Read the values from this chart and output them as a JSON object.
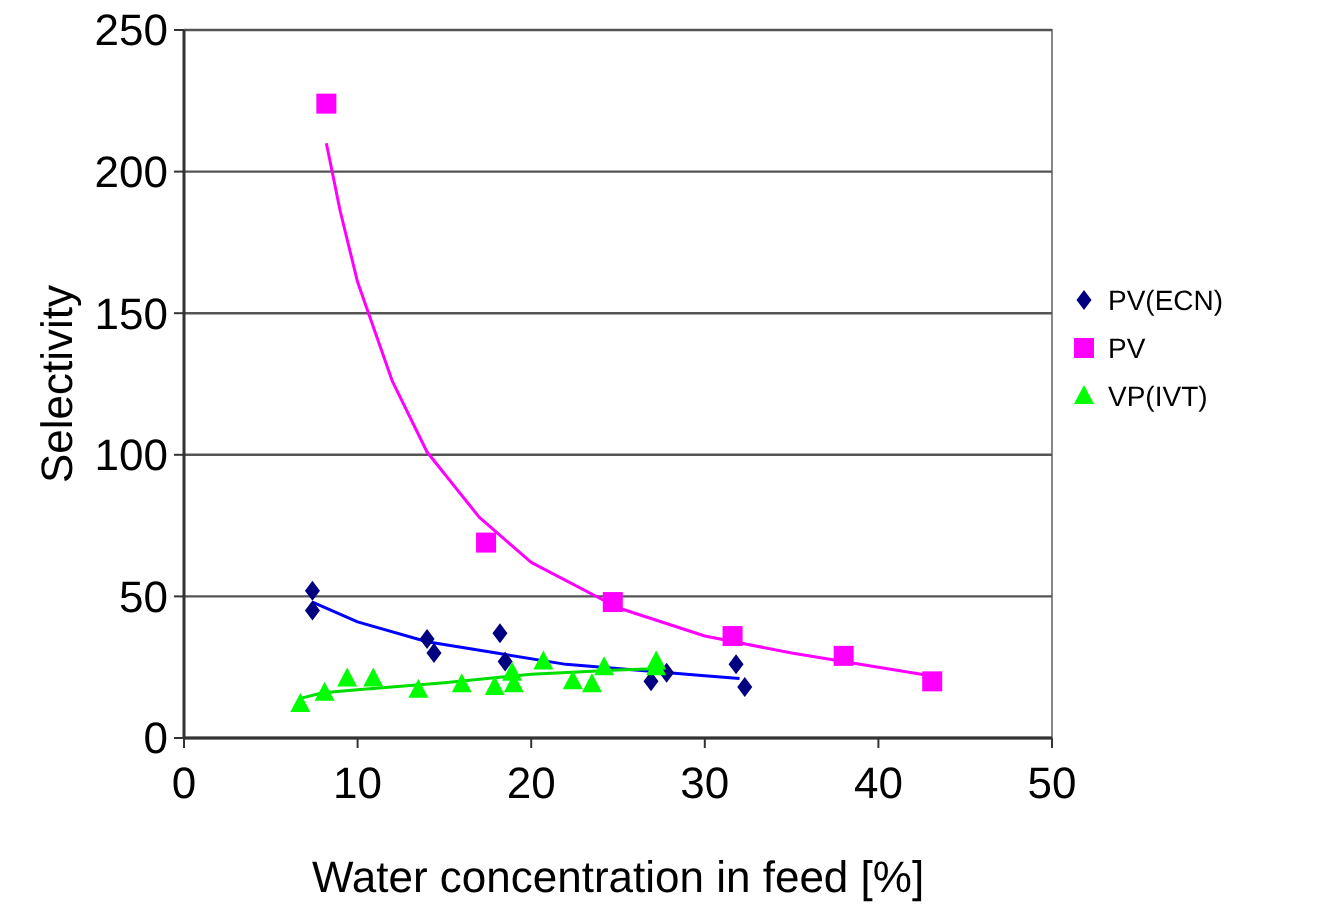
{
  "chart_data": {
    "type": "scatter",
    "xlabel": "Water concentration in feed [%]",
    "ylabel": "Selectivity",
    "xlim": [
      0,
      50
    ],
    "xticks": [
      0,
      10,
      20,
      30,
      40,
      50
    ],
    "ylim": [
      0,
      250
    ],
    "yticks": [
      0,
      50,
      100,
      150,
      200,
      250
    ],
    "grid": "y",
    "legend": "right",
    "series": [
      {
        "name": "PV(ECN)",
        "color": "#000080",
        "marker": "diamond",
        "x": [
          7.4,
          7.4,
          14.0,
          14.4,
          18.2,
          18.5,
          26.9,
          27.8,
          31.8,
          32.3
        ],
        "values": [
          52,
          45,
          35,
          30,
          37,
          27,
          20,
          23,
          26,
          18
        ]
      },
      {
        "name": "PV",
        "color": "#ff00ff",
        "marker": "square",
        "x": [
          8.2,
          17.4,
          24.7,
          31.6,
          38.0,
          43.1
        ],
        "values": [
          224,
          69,
          48,
          36,
          29,
          20
        ]
      },
      {
        "name": "VP(IVT)",
        "color": "#00ff00",
        "marker": "triangle",
        "x": [
          6.7,
          8.1,
          9.4,
          10.9,
          13.5,
          16.0,
          17.9,
          18.9,
          19.0,
          20.7,
          22.4,
          23.5,
          24.2,
          27.2,
          27.2
        ],
        "values": [
          12,
          16,
          21,
          21,
          17,
          19,
          18,
          23,
          19,
          27,
          20,
          19,
          25,
          27,
          25
        ]
      },
      {
        "type": "line",
        "color": "#0000ff",
        "marker": "none",
        "x": [
          7.4,
          10,
          14,
          18,
          22,
          26,
          30,
          32
        ],
        "values": [
          48,
          41,
          34,
          30,
          26,
          24,
          22,
          21
        ]
      },
      {
        "type": "line",
        "color": "#ff00ff",
        "marker": "none",
        "x": [
          8.2,
          9,
          10,
          12,
          14,
          17,
          20,
          25,
          30,
          35,
          40,
          43
        ],
        "values": [
          210,
          186,
          161,
          126,
          101,
          78,
          62,
          46,
          36,
          30,
          25,
          22
        ]
      },
      {
        "type": "line",
        "color": "#00dd00",
        "marker": "none",
        "x": [
          6.7,
          8,
          10,
          15,
          20,
          25,
          27.5
        ],
        "values": [
          14,
          16,
          17,
          19.5,
          22.5,
          24,
          24.5
        ]
      }
    ]
  }
}
